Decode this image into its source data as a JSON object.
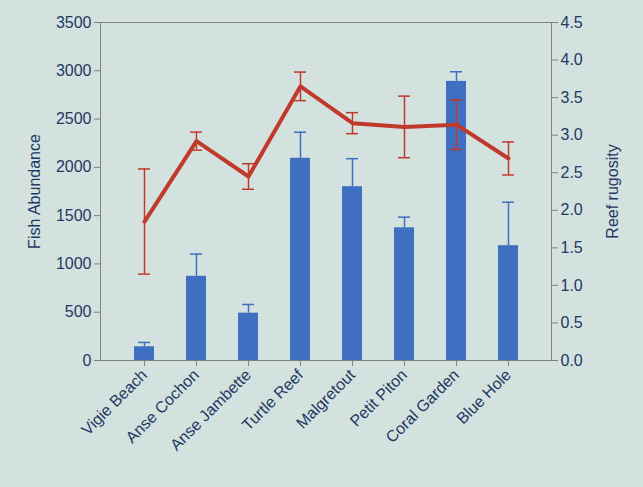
{
  "chart_data": {
    "type": "bar",
    "categories": [
      "Vigie Beach",
      "Anse Cochon",
      "Anse Jambette",
      "Turtle Reef",
      "Malgretout",
      "Petit Piton",
      "Coral Garden",
      "Blue Hole"
    ],
    "y_label": "Fish Abundance",
    "y2_label": "Reef rugosity",
    "ylim": [
      0,
      3500
    ],
    "yticks": [
      0,
      500,
      1000,
      1500,
      2000,
      2500,
      3000,
      3500
    ],
    "y2lim": [
      0,
      4.5
    ],
    "y2ticks": [
      {
        "value": 0,
        "label": "0.0"
      },
      0.5,
      {
        "value": 1,
        "label": "1.0"
      },
      1.5,
      {
        "value": 2,
        "label": "2.0"
      },
      2.5,
      {
        "value": 3,
        "label": "3.0"
      },
      3.5,
      {
        "value": 4,
        "label": "4.0"
      },
      4.5
    ],
    "series": [
      {
        "type": "bar",
        "color": "#3f6fc0",
        "values": [
          142,
          872,
          490,
          2094,
          1800,
          1374,
          2890,
          1189
        ],
        "errors": [
          45,
          230,
          90,
          270,
          290,
          110,
          100,
          450
        ]
      },
      {
        "type": "line",
        "axis": "y2",
        "color": "#c0392b",
        "values": [
          1.85,
          2.92,
          2.45,
          3.65,
          3.16,
          3.11,
          3.14,
          2.69
        ],
        "errors": [
          0.7,
          0.12,
          0.17,
          0.19,
          0.14,
          0.41,
          0.33,
          0.22
        ]
      }
    ]
  }
}
